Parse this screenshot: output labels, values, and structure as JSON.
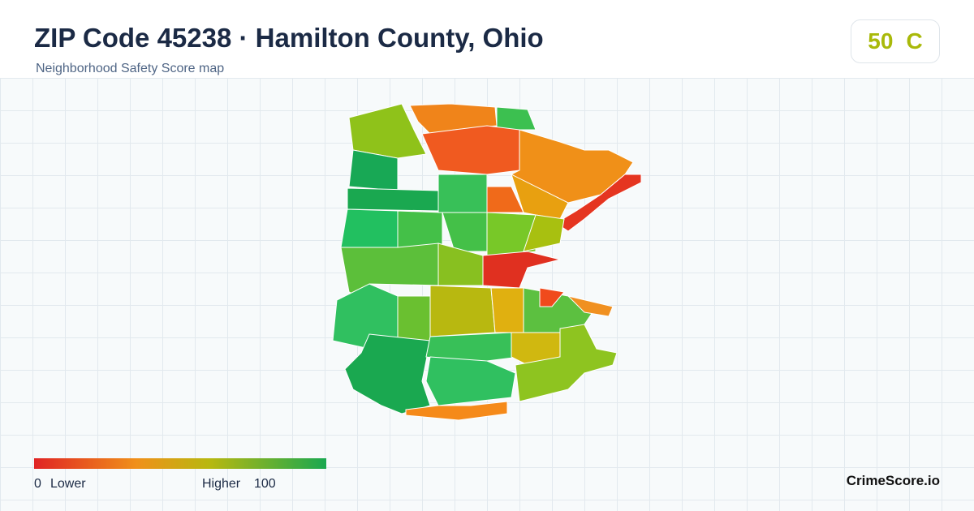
{
  "header": {
    "title": "ZIP Code 45238 · Hamilton County, Ohio",
    "subtitle": "Neighborhood Safety Score map"
  },
  "score": {
    "value": 50,
    "grade": "C"
  },
  "legend": {
    "min": 0,
    "min_label": "Lower",
    "max_label": "Higher",
    "max": 100
  },
  "footer": {
    "brand": "CrimeScore.io"
  }
}
